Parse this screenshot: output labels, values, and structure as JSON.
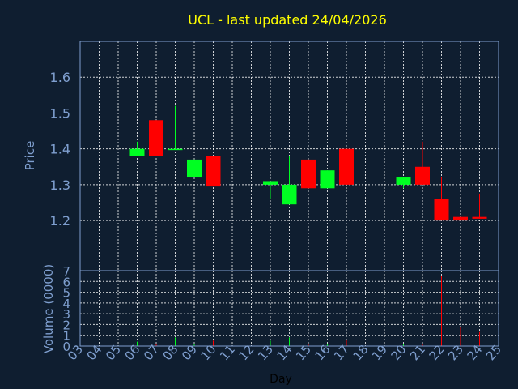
{
  "chart_data": [
    {
      "type": "candlestick",
      "title": "UCL - last updated 24/04/2026",
      "ylabel": "Price",
      "xlabel": "",
      "ylim": [
        1.06,
        1.7
      ],
      "yticks": [
        "1.2",
        "1.3",
        "1.4",
        "1.5",
        "1.6"
      ],
      "grid": true,
      "colors": {
        "up": "#00ff22",
        "down": "#ff0000",
        "title": "#ffff00",
        "axis_text": "#7f9fcf",
        "grid": "#ffffff",
        "frame": "#7f9fcf",
        "background": "#0f1e30"
      },
      "candles": [
        {
          "day": "06",
          "open": 1.38,
          "high": 1.42,
          "low": 1.38,
          "close": 1.4
        },
        {
          "day": "07",
          "open": 1.48,
          "high": 1.48,
          "low": 1.38,
          "close": 1.38
        },
        {
          "day": "08",
          "open": 1.4,
          "high": 1.52,
          "low": 1.4,
          "close": 1.4
        },
        {
          "day": "09",
          "open": 1.32,
          "high": 1.37,
          "low": 1.32,
          "close": 1.37
        },
        {
          "day": "10",
          "open": 1.38,
          "high": 1.38,
          "low": 1.295,
          "close": 1.295
        },
        {
          "day": "13",
          "open": 1.3,
          "high": 1.31,
          "low": 1.26,
          "close": 1.31
        },
        {
          "day": "14",
          "open": 1.245,
          "high": 1.38,
          "low": 1.245,
          "close": 1.3
        },
        {
          "day": "15",
          "open": 1.37,
          "high": 1.37,
          "low": 1.29,
          "close": 1.29
        },
        {
          "day": "16",
          "open": 1.29,
          "high": 1.34,
          "low": 1.29,
          "close": 1.34
        },
        {
          "day": "17",
          "open": 1.4,
          "high": 1.4,
          "low": 1.3,
          "close": 1.3
        },
        {
          "day": "20",
          "open": 1.3,
          "high": 1.32,
          "low": 1.29,
          "close": 1.32
        },
        {
          "day": "21",
          "open": 1.35,
          "high": 1.42,
          "low": 1.3,
          "close": 1.3
        },
        {
          "day": "22",
          "open": 1.26,
          "high": 1.32,
          "low": 1.2,
          "close": 1.2
        },
        {
          "day": "23",
          "open": 1.21,
          "high": 1.21,
          "low": 1.2,
          "close": 1.2
        },
        {
          "day": "24",
          "open": 1.21,
          "high": 1.275,
          "low": 1.205,
          "close": 1.205
        }
      ]
    },
    {
      "type": "bar",
      "title": "",
      "ylabel": "Volume (0000)",
      "xlabel": "Day",
      "ylim": [
        0,
        7
      ],
      "yticks": [
        "0",
        "1",
        "2",
        "3",
        "4",
        "5",
        "6",
        "7"
      ],
      "grid": true,
      "categories": [
        "03",
        "04",
        "05",
        "06",
        "07",
        "08",
        "09",
        "10",
        "11",
        "12",
        "13",
        "14",
        "15",
        "16",
        "17",
        "18",
        "19",
        "20",
        "21",
        "22",
        "23",
        "24",
        "25"
      ],
      "values": [
        0,
        0,
        0,
        0.4,
        0.2,
        0.8,
        0.15,
        0.5,
        0,
        0,
        0.5,
        0.8,
        0.2,
        0.2,
        0.6,
        0,
        0,
        0.2,
        0.2,
        6.5,
        1.8,
        1.3,
        0
      ],
      "bar_colors": [
        "",
        "",
        "",
        "#00ff22",
        "#ff0000",
        "#00ff22",
        "#00ff22",
        "#ff0000",
        "",
        "",
        "#00ff22",
        "#00ff22",
        "#ff0000",
        "#00ff22",
        "#ff0000",
        "",
        "",
        "#00ff22",
        "#ff0000",
        "#ff0000",
        "#ff0000",
        "#ff0000",
        ""
      ]
    }
  ]
}
